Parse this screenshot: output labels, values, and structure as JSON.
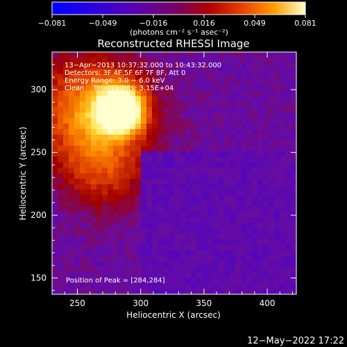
{
  "colorbar": {
    "tick_labels": [
      "−0.081",
      "−0.049",
      "−0.016",
      "0.016",
      "0.049",
      "0.081"
    ],
    "units": "(photons cm⁻² s⁻¹ asec⁻²)",
    "range": [
      -0.081,
      0.081
    ]
  },
  "chart_data": {
    "type": "heatmap",
    "title": "Reconstructed RHESSI Image",
    "xlabel": "Heliocentric X (arcsec)",
    "ylabel": "Heliocentric Y (arcsec)",
    "xlim": [
      230,
      423
    ],
    "ylim": [
      137,
      330
    ],
    "x_ticks": [
      250,
      300,
      350,
      400
    ],
    "y_ticks": [
      150,
      200,
      250,
      300
    ],
    "peak_position": [
      284,
      284
    ],
    "value_range": [
      -0.081,
      0.081
    ],
    "grid": false,
    "annotations": [
      "13−Apr−2013 10:37:32.000 to 10:43:32.000",
      "Detectors: 3F 4F 5F 6F 7F 8F, Att 0",
      "Energy Range: 3.0 − 6.0 keV",
      "Clean    Total counts: 3.15E+04",
      "Position of Peak = [284,284]"
    ]
  },
  "footer": {
    "timestamp": "12−May−2022 17:22"
  },
  "colors": {
    "background": "#000000",
    "colormap": [
      "#0000ff",
      "#3e00d8",
      "#6a0d9c",
      "#a00000",
      "#e04000",
      "#ff9000",
      "#ffe040",
      "#ffffd0"
    ]
  }
}
